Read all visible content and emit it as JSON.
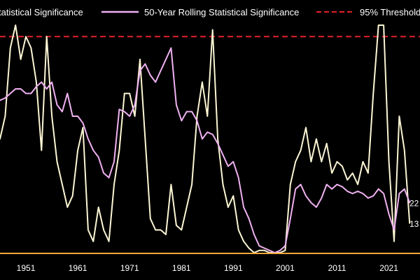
{
  "chart_data": {
    "type": "line",
    "title": "",
    "xlabel": "",
    "ylabel": "",
    "xlim": [
      1946,
      2027
    ],
    "ylim": [
      0,
      100
    ],
    "x_ticks": [
      "1951",
      "1961",
      "1971",
      "1981",
      "1991",
      "2001",
      "2011",
      "2021"
    ],
    "grid": false,
    "legend": {
      "placement": "top",
      "entries": [
        {
          "label": "tatistical Significance",
          "series": "short"
        },
        {
          "label": "50-Year Rolling Statistical Significance",
          "series": "rolling50"
        },
        {
          "label": "95% Threshold",
          "series": "threshold"
        }
      ]
    },
    "threshold": {
      "label": "95% Threshold",
      "value": 95,
      "color": "#e4202a"
    },
    "baseline_color": "#f2a83a",
    "series": [
      {
        "key": "short",
        "color": "#fcf6d4",
        "end_label": "13",
        "x": [
          1946,
          1947,
          1948,
          1949,
          1950,
          1951,
          1952,
          1953,
          1954,
          1955,
          1956,
          1957,
          1958,
          1959,
          1960,
          1961,
          1962,
          1963,
          1964,
          1965,
          1966,
          1967,
          1968,
          1969,
          1970,
          1971,
          1972,
          1973,
          1974,
          1975,
          1976,
          1977,
          1978,
          1979,
          1980,
          1981,
          1982,
          1983,
          1984,
          1985,
          1986,
          1987,
          1988,
          1989,
          1990,
          1991,
          1992,
          1993,
          1994,
          1995,
          1996,
          1997,
          1998,
          1999,
          2000,
          2001,
          2002,
          2003,
          2004,
          2005,
          2006,
          2007,
          2008,
          2009,
          2010,
          2011,
          2012,
          2013,
          2014,
          2015,
          2016,
          2017,
          2018,
          2019,
          2020,
          2021,
          2022,
          2023,
          2024,
          2025
        ],
        "y": [
          50,
          60,
          90,
          100,
          85,
          95,
          90,
          75,
          45,
          95,
          60,
          40,
          30,
          20,
          25,
          45,
          55,
          10,
          5,
          20,
          10,
          5,
          30,
          45,
          70,
          70,
          60,
          85,
          50,
          15,
          10,
          10,
          8,
          30,
          12,
          10,
          20,
          30,
          60,
          75,
          60,
          98,
          50,
          30,
          20,
          25,
          10,
          5,
          2,
          0,
          1,
          1,
          0,
          0,
          0,
          1,
          30,
          40,
          45,
          55,
          40,
          50,
          40,
          48,
          35,
          40,
          38,
          32,
          35,
          30,
          40,
          35,
          70,
          100,
          100,
          40,
          5,
          60,
          45,
          13
        ]
      },
      {
        "key": "rolling50",
        "color": "#f0b2f2",
        "end_label": "22",
        "x": [
          1946,
          1947,
          1948,
          1949,
          1950,
          1951,
          1952,
          1953,
          1954,
          1955,
          1956,
          1957,
          1958,
          1959,
          1960,
          1961,
          1962,
          1963,
          1964,
          1965,
          1966,
          1967,
          1968,
          1969,
          1970,
          1971,
          1972,
          1973,
          1974,
          1975,
          1976,
          1977,
          1978,
          1979,
          1980,
          1981,
          1982,
          1983,
          1984,
          1985,
          1986,
          1987,
          1988,
          1989,
          1990,
          1991,
          1992,
          1993,
          1994,
          1995,
          1996,
          1997,
          1998,
          1999,
          2000,
          2001,
          2002,
          2003,
          2004,
          2005,
          2006,
          2007,
          2008,
          2009,
          2010,
          2011,
          2012,
          2013,
          2014,
          2015,
          2016,
          2017,
          2018,
          2019,
          2020,
          2021,
          2022,
          2023,
          2024,
          2025
        ],
        "y": [
          67,
          68,
          70,
          72,
          72,
          70,
          70,
          73,
          75,
          72,
          75,
          65,
          62,
          70,
          60,
          60,
          57,
          50,
          45,
          42,
          35,
          33,
          40,
          63,
          62,
          60,
          65,
          80,
          83,
          78,
          75,
          80,
          85,
          90,
          65,
          58,
          62,
          62,
          58,
          50,
          53,
          52,
          48,
          43,
          38,
          40,
          33,
          20,
          15,
          8,
          3,
          2,
          1,
          0,
          1,
          3,
          15,
          28,
          30,
          25,
          22,
          20,
          24,
          30,
          28,
          30,
          29,
          27,
          26,
          27,
          26,
          24,
          25,
          28,
          26,
          17,
          10,
          26,
          28,
          22
        ]
      }
    ]
  }
}
